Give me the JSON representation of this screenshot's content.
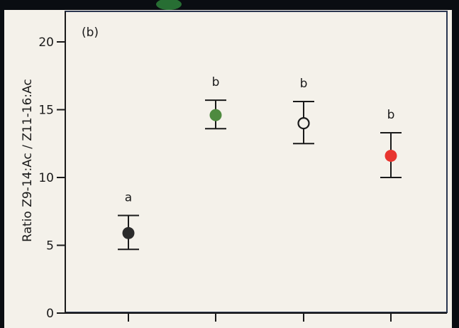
{
  "chart_data": {
    "type": "scatter",
    "panel_label": "(b)",
    "ylabel": "Ratio Z9-14:Ac / Z11-16:Ac",
    "xlabel": "",
    "ylim": [
      0,
      22
    ],
    "yticks": [
      0,
      5,
      10,
      15,
      20
    ],
    "categories": [
      "",
      "",
      "",
      ""
    ],
    "points": [
      {
        "mean": 5.9,
        "lower": 4.7,
        "upper": 7.2,
        "letter": "a",
        "color": "#2b2b2b",
        "filled": true
      },
      {
        "mean": 14.6,
        "lower": 13.6,
        "upper": 15.7,
        "letter": "b",
        "color": "#4e8a3f",
        "filled": true
      },
      {
        "mean": 14.0,
        "lower": 12.5,
        "upper": 15.6,
        "letter": "b",
        "color": "#1a1a1a",
        "filled": false
      },
      {
        "mean": 11.6,
        "lower": 10.0,
        "upper": 13.3,
        "letter": "b",
        "color": "#e8352f",
        "filled": true
      }
    ],
    "grid": false,
    "legend": "none"
  },
  "colors": {
    "background": "#0a0d12",
    "plot_area": "#f4f1ea",
    "ink": "#1a1a1a",
    "frame": "#2a3650"
  }
}
